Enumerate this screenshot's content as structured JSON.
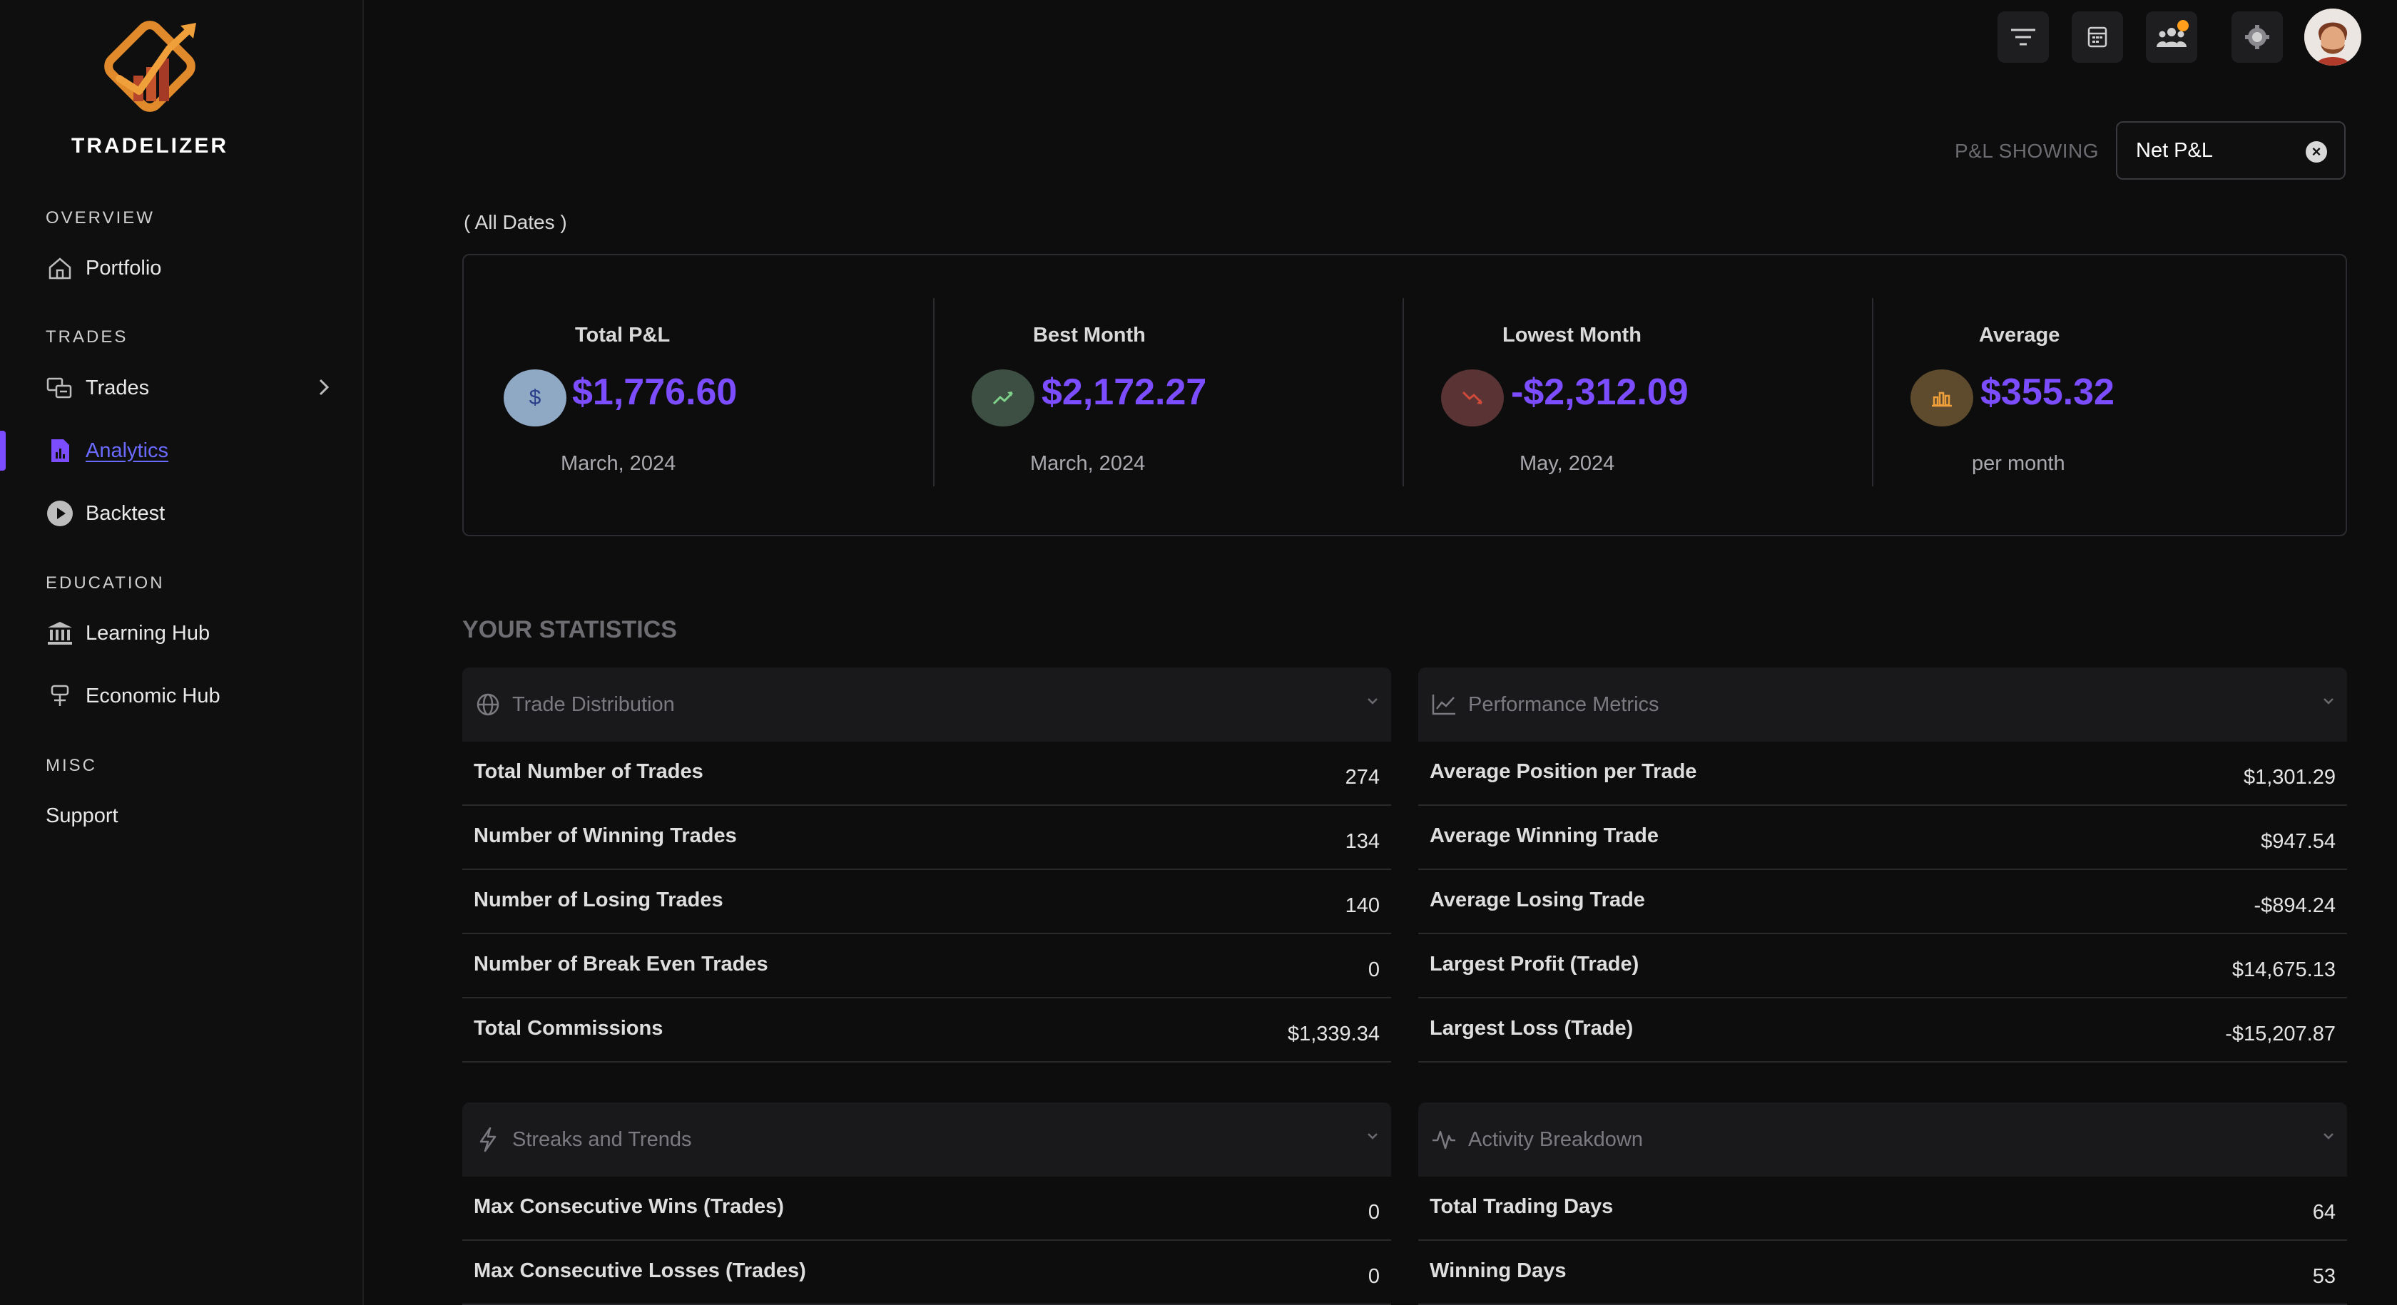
{
  "brand": {
    "name": "TRADELIZER"
  },
  "sidebar": {
    "sections": [
      {
        "label": "OVERVIEW",
        "items": [
          {
            "label": "Portfolio",
            "icon": "home-icon"
          }
        ]
      },
      {
        "label": "TRADES",
        "items": [
          {
            "label": "Trades",
            "icon": "trades-icon",
            "has_submenu": true
          },
          {
            "label": "Analytics",
            "icon": "analytics-icon",
            "active": true
          },
          {
            "label": "Backtest",
            "icon": "play-icon"
          }
        ]
      },
      {
        "label": "EDUCATION",
        "items": [
          {
            "label": "Learning Hub",
            "icon": "bank-icon"
          },
          {
            "label": "Economic Hub",
            "icon": "economic-icon"
          }
        ]
      },
      {
        "label": "MISC",
        "items": [
          {
            "label": "Support",
            "icon": ""
          }
        ]
      }
    ]
  },
  "topbar": {
    "buttons": [
      "filter-icon",
      "calendar-icon",
      "users-icon",
      "settings-icon"
    ],
    "notification_color": "#ff9f1c"
  },
  "pl_filter": {
    "label": "P&L SHOWING",
    "value": "Net P&L"
  },
  "date_range": "( All Dates )",
  "summary": [
    {
      "title": "Total P&L",
      "value": "$1,776.60",
      "sub": "March, 2024",
      "icon": "dollar-icon",
      "icon_bg": "#8fa8c4"
    },
    {
      "title": "Best Month",
      "value": "$2,172.27",
      "sub": "March, 2024",
      "icon": "trend-up-icon",
      "icon_bg": "#3d4f42"
    },
    {
      "title": "Lowest Month",
      "value": "-$2,312.09",
      "sub": "May, 2024",
      "icon": "trend-down-icon",
      "icon_bg": "#5a3434"
    },
    {
      "title": "Average",
      "value": "$355.32",
      "sub": "per month",
      "icon": "bar-chart-icon",
      "icon_bg": "#5e4a2c"
    }
  ],
  "stats_heading": "YOUR STATISTICS",
  "panels": {
    "trade_distribution": {
      "title": "Trade Distribution",
      "rows": [
        {
          "label": "Total Number of Trades",
          "value": "274"
        },
        {
          "label": "Number of Winning Trades",
          "value": "134"
        },
        {
          "label": "Number of Losing Trades",
          "value": "140"
        },
        {
          "label": "Number of Break Even Trades",
          "value": "0"
        },
        {
          "label": "Total Commissions",
          "value": "$1,339.34"
        }
      ]
    },
    "performance_metrics": {
      "title": "Performance Metrics",
      "rows": [
        {
          "label": "Average Position per Trade",
          "value": "$1,301.29"
        },
        {
          "label": "Average Winning Trade",
          "value": "$947.54"
        },
        {
          "label": "Average Losing Trade",
          "value": "-$894.24"
        },
        {
          "label": "Largest Profit (Trade)",
          "value": "$14,675.13"
        },
        {
          "label": "Largest Loss (Trade)",
          "value": "-$15,207.87"
        }
      ]
    },
    "streaks": {
      "title": "Streaks and Trends",
      "rows": [
        {
          "label": "Max Consecutive Wins (Trades)",
          "value": "0"
        },
        {
          "label": "Max Consecutive Losses (Trades)",
          "value": "0"
        }
      ]
    },
    "activity": {
      "title": "Activity Breakdown",
      "rows": [
        {
          "label": "Total Trading Days",
          "value": "64"
        },
        {
          "label": "Winning Days",
          "value": "53"
        }
      ]
    }
  },
  "colors": {
    "accent": "#7c4dff",
    "link": "#6a6aff",
    "background": "#0d0d0e"
  }
}
